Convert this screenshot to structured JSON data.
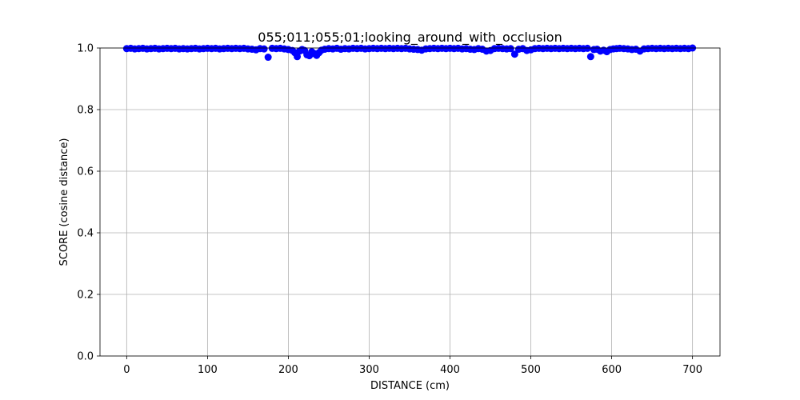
{
  "chart_data": {
    "type": "scatter",
    "title": "055;011;055;01;looking_around_with_occlusion",
    "xlabel": "DISTANCE (cm)",
    "ylabel": "SCORE (cosine distance)",
    "xlim": [
      -33,
      734
    ],
    "ylim": [
      0.0,
      1.0
    ],
    "xticks": [
      0,
      100,
      200,
      300,
      400,
      500,
      600,
      700
    ],
    "yticks": [
      0.0,
      0.2,
      0.4,
      0.6,
      0.8,
      1.0
    ],
    "xtick_labels": [
      "0",
      "100",
      "200",
      "300",
      "400",
      "500",
      "600",
      "700"
    ],
    "ytick_labels": [
      "0.0",
      "0.2",
      "0.4",
      "0.6",
      "0.8",
      "1.0"
    ],
    "grid": true,
    "marker_color": "#0000ff",
    "series": [
      {
        "x": [
          0,
          5,
          10,
          15,
          20,
          25,
          30,
          35,
          40,
          45,
          50,
          55,
          60,
          65,
          70,
          75,
          80,
          85,
          90,
          95,
          100,
          105,
          110,
          115,
          120,
          125,
          130,
          135,
          140,
          145,
          150,
          155,
          160,
          165,
          170,
          175,
          180,
          185,
          190,
          195,
          200,
          205,
          208,
          211,
          214,
          217,
          220,
          223,
          226,
          229,
          232,
          235,
          238,
          241,
          245,
          250,
          255,
          260,
          265,
          270,
          275,
          280,
          285,
          290,
          295,
          300,
          305,
          310,
          315,
          320,
          325,
          330,
          335,
          340,
          345,
          350,
          355,
          360,
          365,
          370,
          375,
          380,
          385,
          390,
          395,
          400,
          405,
          410,
          415,
          420,
          425,
          430,
          435,
          440,
          445,
          450,
          455,
          460,
          465,
          470,
          475,
          480,
          485,
          490,
          495,
          500,
          505,
          510,
          515,
          520,
          525,
          530,
          535,
          540,
          545,
          550,
          555,
          560,
          565,
          570,
          574,
          578,
          582,
          586,
          590,
          594,
          598,
          602,
          606,
          610,
          615,
          620,
          625,
          630,
          635,
          640,
          645,
          650,
          655,
          660,
          665,
          670,
          675,
          680,
          685,
          690,
          695,
          700
        ],
        "y": [
          0.998,
          0.999,
          0.997,
          0.998,
          0.999,
          0.997,
          0.998,
          0.999,
          0.997,
          0.998,
          0.999,
          0.998,
          0.999,
          0.997,
          0.998,
          0.997,
          0.998,
          0.999,
          0.997,
          0.998,
          0.999,
          0.998,
          0.999,
          0.997,
          0.998,
          0.999,
          0.998,
          0.999,
          0.998,
          0.999,
          0.997,
          0.996,
          0.994,
          0.998,
          0.997,
          0.97,
          0.999,
          0.998,
          0.999,
          0.997,
          0.995,
          0.992,
          0.985,
          0.972,
          0.99,
          0.995,
          0.992,
          0.978,
          0.975,
          0.988,
          0.982,
          0.976,
          0.985,
          0.993,
          0.996,
          0.998,
          0.997,
          0.999,
          0.996,
          0.998,
          0.997,
          0.999,
          0.998,
          0.999,
          0.997,
          0.998,
          0.999,
          0.998,
          0.999,
          0.998,
          0.999,
          0.998,
          0.999,
          0.998,
          0.999,
          0.997,
          0.996,
          0.995,
          0.993,
          0.997,
          0.998,
          0.999,
          0.998,
          0.999,
          0.998,
          0.999,
          0.998,
          0.999,
          0.997,
          0.998,
          0.996,
          0.995,
          0.998,
          0.996,
          0.99,
          0.992,
          0.998,
          0.999,
          0.998,
          0.997,
          0.998,
          0.98,
          0.996,
          0.998,
          0.992,
          0.994,
          0.998,
          0.999,
          0.998,
          0.999,
          0.998,
          0.999,
          0.998,
          0.999,
          0.998,
          0.999,
          0.998,
          0.999,
          0.998,
          0.999,
          0.972,
          0.995,
          0.996,
          0.99,
          0.993,
          0.988,
          0.995,
          0.997,
          0.998,
          0.999,
          0.998,
          0.997,
          0.995,
          0.996,
          0.99,
          0.997,
          0.998,
          0.999,
          0.998,
          0.999,
          0.998,
          0.999,
          0.998,
          0.999,
          0.998,
          0.999,
          0.998,
          1.0
        ]
      }
    ]
  }
}
